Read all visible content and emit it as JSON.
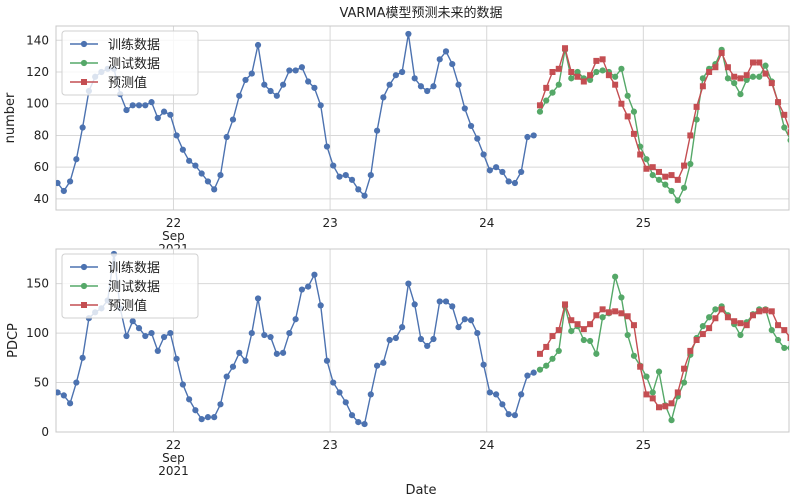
{
  "figure": {
    "title": "VARMA模型预测未来的数据",
    "xlabel": "Date"
  },
  "chart_data": [
    {
      "type": "line",
      "ylabel": "number",
      "ylim": [
        33,
        149
      ],
      "yticks": [
        40,
        60,
        80,
        100,
        120,
        140
      ],
      "xlim": [
        21.25,
        25.93
      ],
      "xticks": [
        {
          "x": 22,
          "label": "22",
          "sub": [
            "Sep",
            "2021"
          ]
        },
        {
          "x": 23,
          "label": "23"
        },
        {
          "x": 24,
          "label": "24"
        },
        {
          "x": 25,
          "label": "25"
        }
      ],
      "grid": true,
      "legend": "top-left",
      "series": [
        {
          "name": "训练数据",
          "color": "#4C72B0",
          "marker": "circle",
          "x": [
            21.26,
            21.3,
            21.34,
            21.38,
            21.42,
            21.46,
            21.5,
            21.54,
            21.58,
            21.62,
            21.66,
            21.7,
            21.74,
            21.78,
            21.82,
            21.86,
            21.9,
            21.94,
            21.98,
            22.02,
            22.06,
            22.1,
            22.14,
            22.18,
            22.22,
            22.26,
            22.3,
            22.34,
            22.38,
            22.42,
            22.46,
            22.5,
            22.54,
            22.58,
            22.62,
            22.66,
            22.7,
            22.74,
            22.78,
            22.82,
            22.86,
            22.9,
            22.94,
            22.98,
            23.02,
            23.06,
            23.1,
            23.14,
            23.18,
            23.22,
            23.26,
            23.3,
            23.34,
            23.38,
            23.42,
            23.46,
            23.5,
            23.54,
            23.58,
            23.62,
            23.66,
            23.7,
            23.74,
            23.78,
            23.82,
            23.86,
            23.9,
            23.94,
            23.98,
            24.02,
            24.06,
            24.1,
            24.14,
            24.18,
            24.22,
            24.26,
            24.3
          ],
          "y": [
            50,
            45,
            51,
            65,
            85,
            108,
            117,
            120,
            122,
            122,
            106,
            96,
            99,
            99,
            99,
            101,
            91,
            95,
            93,
            80,
            71,
            64,
            61,
            56,
            51,
            46,
            55,
            79,
            90,
            105,
            115,
            119,
            137,
            112,
            108,
            105,
            112,
            121,
            121,
            123,
            114,
            110,
            99,
            73,
            61,
            54,
            55,
            52,
            46,
            42,
            55,
            83,
            104,
            112,
            118,
            120,
            144,
            116,
            111,
            108,
            111,
            128,
            133,
            125,
            112,
            97,
            86,
            78,
            68,
            58,
            60,
            57,
            51,
            50,
            57,
            79,
            80
          ]
        },
        {
          "name": "测试数据",
          "color": "#55A868",
          "marker": "circle",
          "x": [
            24.34,
            24.38,
            24.42,
            24.46,
            24.5,
            24.54,
            24.58,
            24.62,
            24.66,
            24.7,
            24.74,
            24.78,
            24.82,
            24.86,
            24.9,
            24.94,
            24.98,
            25.02,
            25.06,
            25.1,
            25.14,
            25.18,
            25.22,
            25.26,
            25.3,
            25.34,
            25.38,
            25.42,
            25.46,
            25.5,
            25.54,
            25.58,
            25.62,
            25.66,
            25.7,
            25.74,
            25.78,
            25.82,
            25.86,
            25.9,
            25.94
          ],
          "y": [
            95,
            102,
            107,
            112,
            134,
            116,
            120,
            116,
            115,
            120,
            121,
            120,
            117,
            122,
            105,
            95,
            73,
            65,
            55,
            52,
            49,
            45,
            39,
            47,
            62,
            90,
            116,
            122,
            125,
            134,
            116,
            113,
            106,
            115,
            117,
            117,
            124,
            114,
            101,
            85,
            77
          ]
        },
        {
          "name": "预测值",
          "color": "#C44E52",
          "marker": "square",
          "x": [
            24.34,
            24.38,
            24.42,
            24.46,
            24.5,
            24.54,
            24.58,
            24.62,
            24.66,
            24.7,
            24.74,
            24.78,
            24.82,
            24.86,
            24.9,
            24.94,
            24.98,
            25.02,
            25.06,
            25.1,
            25.14,
            25.18,
            25.22,
            25.26,
            25.3,
            25.34,
            25.38,
            25.42,
            25.46,
            25.5,
            25.54,
            25.58,
            25.62,
            25.66,
            25.7,
            25.74,
            25.78,
            25.82,
            25.86,
            25.9,
            25.94
          ],
          "y": [
            99,
            110,
            120,
            122,
            135,
            120,
            117,
            114,
            118,
            127,
            128,
            118,
            112,
            100,
            92,
            81,
            68,
            59,
            60,
            57,
            54,
            55,
            52,
            61,
            80,
            98,
            111,
            120,
            123,
            132,
            123,
            117,
            116,
            118,
            126,
            126,
            119,
            113,
            101,
            93,
            82
          ]
        }
      ]
    },
    {
      "type": "line",
      "ylabel": "PDCP",
      "ylim": [
        0,
        185
      ],
      "yticks": [
        0,
        50,
        100,
        150
      ],
      "xlim": [
        21.25,
        25.93
      ],
      "xticks": [
        {
          "x": 22,
          "label": "22",
          "sub": [
            "Sep",
            "2021"
          ]
        },
        {
          "x": 23,
          "label": "23"
        },
        {
          "x": 24,
          "label": "24"
        },
        {
          "x": 25,
          "label": "25"
        }
      ],
      "grid": true,
      "legend": "top-left",
      "series": [
        {
          "name": "训练数据",
          "color": "#4C72B0",
          "marker": "circle",
          "x": [
            21.26,
            21.3,
            21.34,
            21.38,
            21.42,
            21.46,
            21.5,
            21.54,
            21.58,
            21.62,
            21.66,
            21.7,
            21.74,
            21.78,
            21.82,
            21.86,
            21.9,
            21.94,
            21.98,
            22.02,
            22.06,
            22.1,
            22.14,
            22.18,
            22.22,
            22.26,
            22.3,
            22.34,
            22.38,
            22.42,
            22.46,
            22.5,
            22.54,
            22.58,
            22.62,
            22.66,
            22.7,
            22.74,
            22.78,
            22.82,
            22.86,
            22.9,
            22.94,
            22.98,
            23.02,
            23.06,
            23.1,
            23.14,
            23.18,
            23.22,
            23.26,
            23.3,
            23.34,
            23.38,
            23.42,
            23.46,
            23.5,
            23.54,
            23.58,
            23.62,
            23.66,
            23.7,
            23.74,
            23.78,
            23.82,
            23.86,
            23.9,
            23.94,
            23.98,
            24.02,
            24.06,
            24.1,
            24.14,
            24.18,
            24.22,
            24.26,
            24.3
          ],
          "y": [
            40,
            37,
            29,
            50,
            75,
            115,
            121,
            125,
            133,
            180,
            125,
            97,
            112,
            105,
            97,
            100,
            82,
            96,
            100,
            74,
            48,
            33,
            22,
            13,
            15,
            15,
            28,
            56,
            66,
            80,
            72,
            100,
            135,
            98,
            96,
            79,
            80,
            100,
            114,
            144,
            147,
            159,
            128,
            72,
            50,
            40,
            30,
            17,
            10,
            8,
            38,
            67,
            70,
            93,
            95,
            106,
            150,
            129,
            94,
            87,
            94,
            132,
            132,
            127,
            106,
            114,
            113,
            100,
            68,
            40,
            38,
            28,
            18,
            17,
            38,
            57,
            60
          ]
        },
        {
          "name": "测试数据",
          "color": "#55A868",
          "marker": "circle",
          "x": [
            24.34,
            24.38,
            24.42,
            24.46,
            24.5,
            24.54,
            24.58,
            24.62,
            24.66,
            24.7,
            24.74,
            24.78,
            24.82,
            24.86,
            24.9,
            24.94,
            24.98,
            25.02,
            25.06,
            25.1,
            25.14,
            25.18,
            25.22,
            25.26,
            25.3,
            25.34,
            25.38,
            25.42,
            25.46,
            25.5,
            25.54,
            25.58,
            25.62,
            25.66,
            25.7,
            25.74,
            25.78,
            25.82,
            25.86,
            25.9,
            25.94
          ],
          "y": [
            63,
            67,
            74,
            82,
            127,
            102,
            107,
            93,
            92,
            79,
            116,
            120,
            157,
            136,
            98,
            77,
            67,
            56,
            40,
            61,
            27,
            12,
            36,
            50,
            78,
            95,
            107,
            116,
            124,
            127,
            118,
            109,
            98,
            111,
            119,
            124,
            124,
            103,
            93,
            85,
            85
          ]
        },
        {
          "name": "预测值",
          "color": "#C44E52",
          "marker": "square",
          "x": [
            24.34,
            24.38,
            24.42,
            24.46,
            24.5,
            24.54,
            24.58,
            24.62,
            24.66,
            24.7,
            24.74,
            24.78,
            24.82,
            24.86,
            24.9,
            24.94,
            24.98,
            25.02,
            25.06,
            25.1,
            25.14,
            25.18,
            25.22,
            25.26,
            25.3,
            25.34,
            25.38,
            25.42,
            25.46,
            25.5,
            25.54,
            25.58,
            25.62,
            25.66,
            25.7,
            25.74,
            25.78,
            25.82,
            25.86,
            25.9,
            25.94
          ],
          "y": [
            79,
            86,
            97,
            103,
            129,
            113,
            109,
            104,
            109,
            118,
            124,
            121,
            122,
            120,
            117,
            108,
            66,
            38,
            34,
            25,
            26,
            29,
            40,
            64,
            82,
            93,
            99,
            105,
            115,
            124,
            116,
            112,
            110,
            108,
            118,
            122,
            123,
            122,
            108,
            103,
            95
          ]
        }
      ]
    }
  ]
}
